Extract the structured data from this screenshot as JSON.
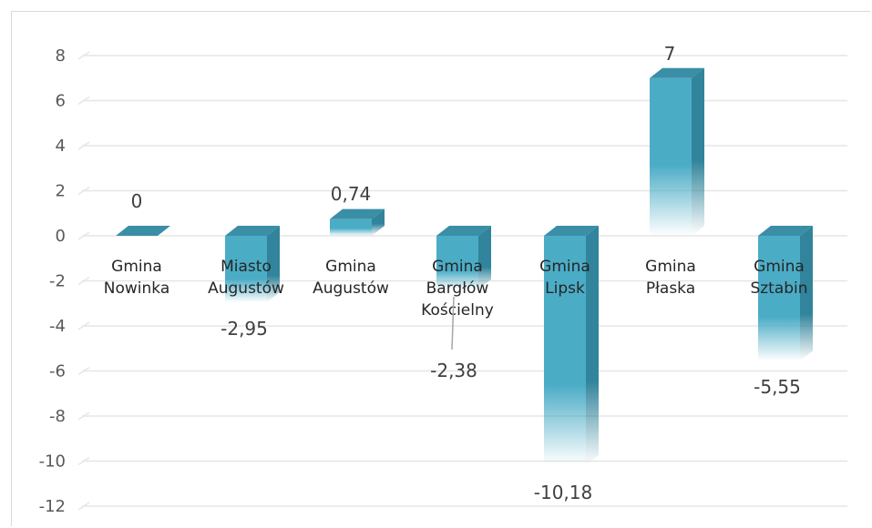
{
  "chart_data": {
    "type": "bar",
    "title": "",
    "xlabel": "",
    "ylabel": "",
    "ylim": [
      -12,
      8
    ],
    "yticks": [
      "8",
      "6",
      "4",
      "2",
      "0",
      "-2",
      "-4",
      "-6",
      "-8",
      "-10",
      "-12"
    ],
    "ytick_values": [
      8,
      6,
      4,
      2,
      0,
      -2,
      -4,
      -6,
      -8,
      -10,
      -12
    ],
    "grid": true,
    "bar_style": "3d",
    "categories": [
      [
        "Gmina",
        "Nowinka"
      ],
      [
        "Miasto",
        "Augustów"
      ],
      [
        "Gmina",
        "Augustów"
      ],
      [
        "Gmina",
        "Bargłów",
        "Kościelny"
      ],
      [
        "Gmina",
        "Lipsk"
      ],
      [
        "Gmina",
        "Płaska"
      ],
      [
        "Gmina",
        "Sztabin"
      ]
    ],
    "values": [
      0,
      -2.95,
      0.74,
      -2.38,
      -10.18,
      7,
      -5.55
    ],
    "data_labels": [
      "0",
      "-2,95",
      "0,74",
      "-2,38",
      "-10,18",
      "7",
      "-5,55"
    ],
    "colors": {
      "front": "#4BACC6",
      "side": "#31849B",
      "top": "#3A8EA6",
      "grid": "#e6e6e6"
    }
  }
}
